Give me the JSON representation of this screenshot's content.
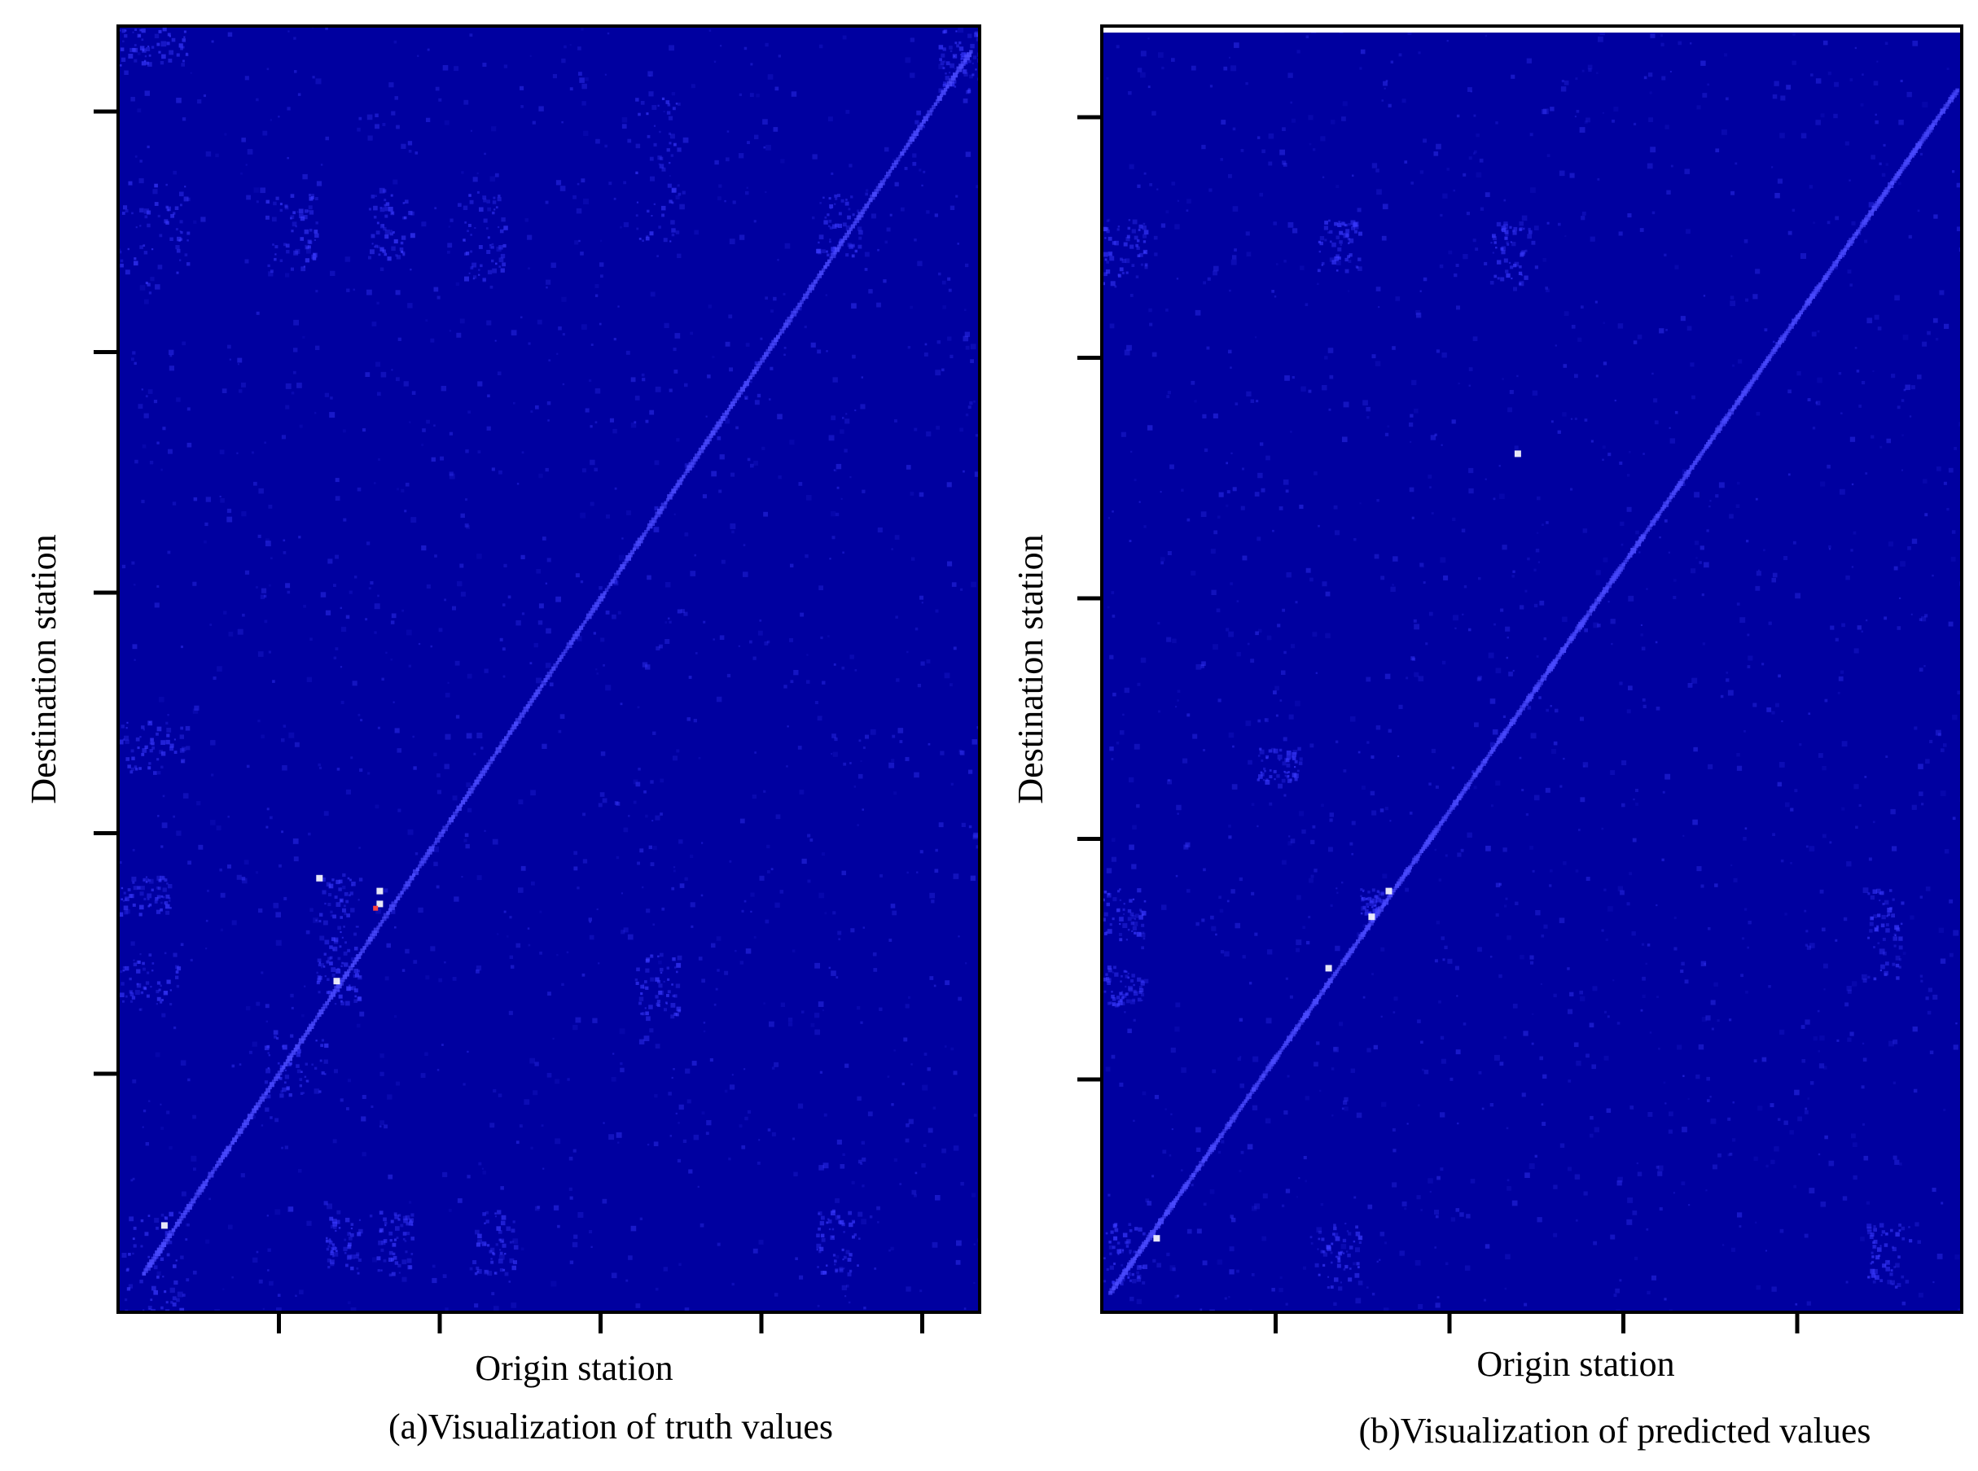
{
  "chart_data": [
    {
      "type": "heatmap",
      "title": "",
      "caption": "(a)Visualization of truth values",
      "xlabel": "Origin station",
      "ylabel": "Destination station",
      "x_tick_labels": [],
      "y_tick_labels": [],
      "x_tick_count": 5,
      "y_tick_count": 5,
      "colormap": {
        "low": "#0000a0",
        "mid": "#3a3aff",
        "high": "#ffffff",
        "peak": "#ff4040"
      },
      "diagonal": "strong",
      "grid": false,
      "legend": "none"
    },
    {
      "type": "heatmap",
      "title": "",
      "caption": "(b)Visualization of predicted values",
      "xlabel": "Origin station",
      "ylabel": "Destination station",
      "x_tick_labels": [],
      "y_tick_labels": [],
      "x_tick_count": 4,
      "y_tick_count": 5,
      "colormap": {
        "low": "#0000a0",
        "mid": "#3a3aff",
        "high": "#ffffff"
      },
      "diagonal": "strong",
      "grid": false,
      "legend": "none"
    }
  ]
}
